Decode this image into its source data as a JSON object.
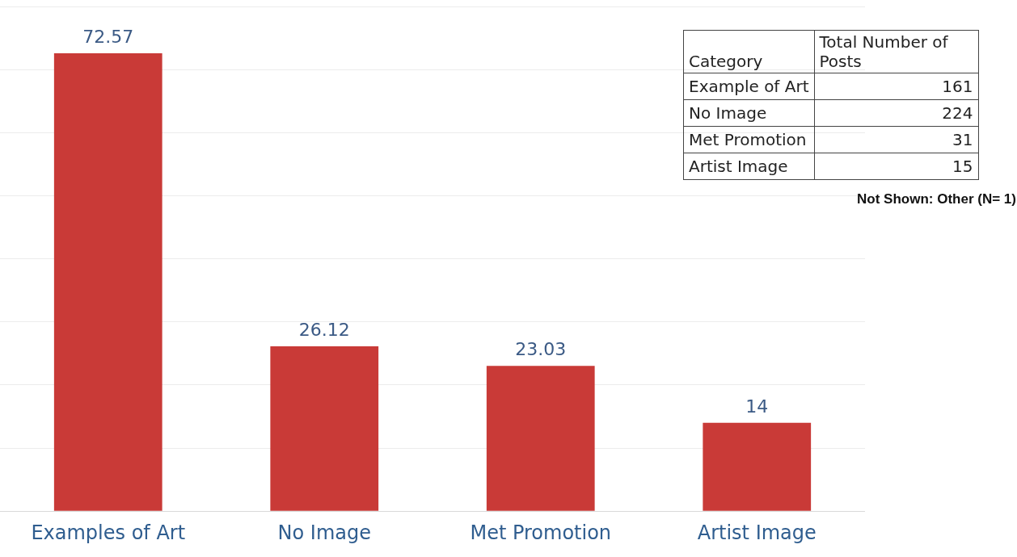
{
  "chart_data": [
    {
      "type": "bar",
      "categories": [
        "Examples of Art",
        "No Image",
        "Met Promotion",
        "Artist Image"
      ],
      "values": [
        72.57,
        26.12,
        23.03,
        14
      ],
      "color": "#c93a37",
      "ylim": [
        0,
        80
      ],
      "yticks": [
        0,
        10,
        20,
        30,
        40,
        50,
        60,
        70,
        80
      ],
      "grid": "y",
      "tick_labels": "x",
      "data_labels": true
    },
    {
      "type": "other",
      "xlabel": "Category",
      "ylabel": "Total Number of Posts",
      "categories": [
        "Example of Art",
        "No Image",
        "Met Promotion",
        "Artist Image"
      ],
      "values": [
        161,
        224,
        31,
        15
      ],
      "data_labels": true,
      "annotations": [
        "Not Shown: Other (N= 1)"
      ]
    }
  ]
}
